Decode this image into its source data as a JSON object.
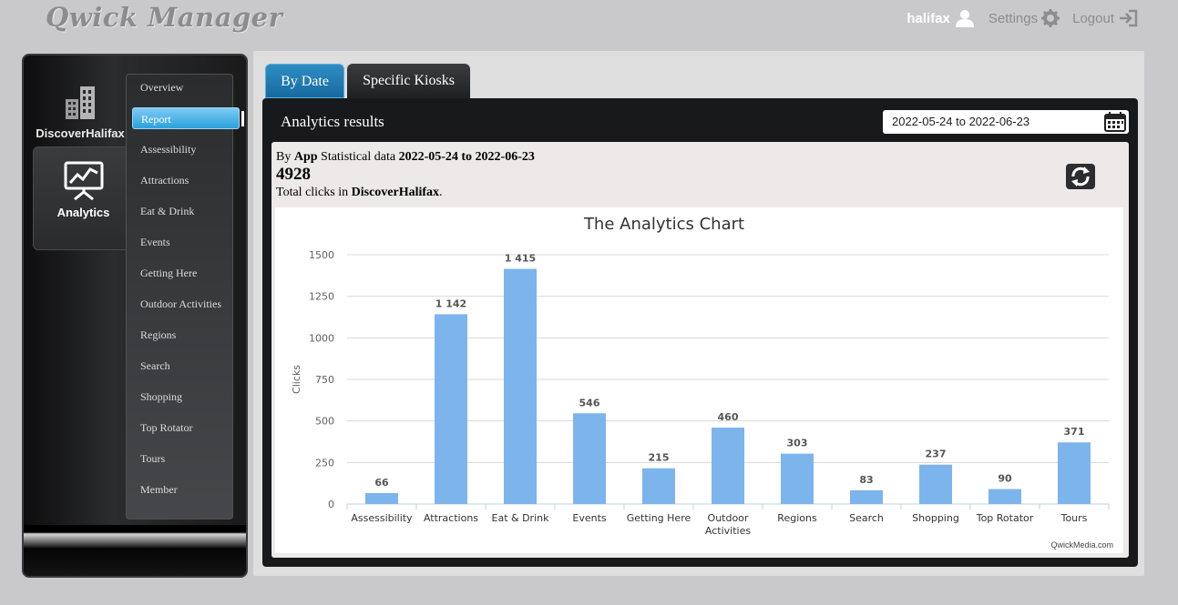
{
  "header": {
    "logo": "Qwick Manager",
    "user": "halifax",
    "settings_label": "Settings",
    "logout_label": "Logout",
    "icons": [
      "user-icon",
      "gear-icon",
      "logout-icon"
    ]
  },
  "sidebar": {
    "app_label": "DiscoverHalifax",
    "analytics_label": "Analytics",
    "menu": [
      {
        "label": "Overview"
      },
      {
        "label": "Report",
        "active": true
      },
      {
        "label": "Assessibility"
      },
      {
        "label": "Attractions"
      },
      {
        "label": "Eat & Drink"
      },
      {
        "label": "Events"
      },
      {
        "label": "Getting Here"
      },
      {
        "label": "Outdoor Activities"
      },
      {
        "label": "Regions"
      },
      {
        "label": "Search"
      },
      {
        "label": "Shopping"
      },
      {
        "label": "Top Rotator"
      },
      {
        "label": "Tours"
      },
      {
        "label": "Member"
      }
    ]
  },
  "tabs": [
    {
      "label": "By Date",
      "active": true
    },
    {
      "label": "Specific Kiosks",
      "active": false
    }
  ],
  "results": {
    "title": "Analytics results",
    "date_range": "2022-05-24 to 2022-06-23"
  },
  "summary": {
    "by": "By",
    "app": "App",
    "stat_text": "Statistical data",
    "range": "2022-05-24 to 2022-06-23",
    "total": "4928",
    "total_prefix": "Total clicks in",
    "app_name": "DiscoverHalifax",
    "period": "."
  },
  "credit": "QwickMedia.com",
  "colors": {
    "bar": "#7cb5ec",
    "tab_active": "#1f7db5",
    "menu_active": "#2aa1de"
  },
  "chart_data": {
    "type": "bar",
    "title": "The Analytics Chart",
    "ylabel": "Clicks",
    "xlabel": "",
    "ylim": [
      0,
      1500
    ],
    "yticks": [
      0,
      250,
      500,
      750,
      1000,
      1250,
      1500
    ],
    "categories": [
      "Assessibility",
      "Attractions",
      "Eat & Drink",
      "Events",
      "Getting Here",
      "Outdoor Activities",
      "Regions",
      "Search",
      "Shopping",
      "Top Rotator",
      "Tours"
    ],
    "values": [
      66,
      1142,
      1415,
      546,
      215,
      460,
      303,
      83,
      237,
      90,
      371
    ],
    "value_labels": [
      "66",
      "1 142",
      "1 415",
      "546",
      "215",
      "460",
      "303",
      "83",
      "237",
      "90",
      "371"
    ],
    "grid": true,
    "legend": "none"
  }
}
